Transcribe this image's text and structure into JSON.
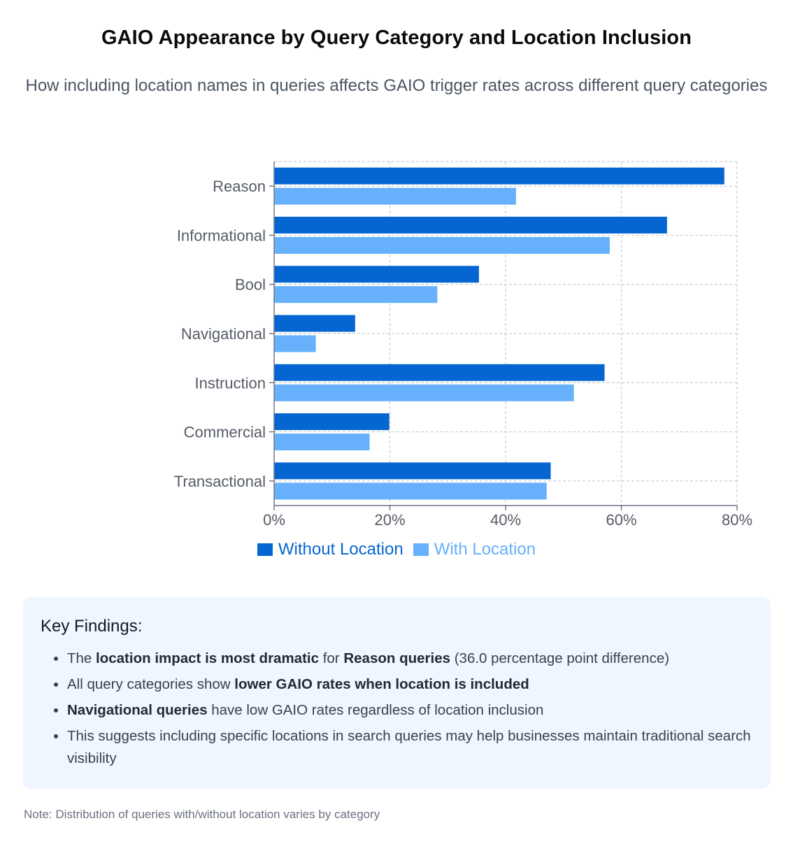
{
  "header": {
    "title": "GAIO Appearance by Query Category and Location Inclusion",
    "subtitle": "How including location names in queries affects GAIO trigger rates across different query categories"
  },
  "chart_data": {
    "type": "bar",
    "orientation": "horizontal",
    "categories": [
      "Reason",
      "Informational",
      "Bool",
      "Navigational",
      "Instruction",
      "Commercial",
      "Transactional"
    ],
    "series": [
      {
        "name": "Without Location",
        "color": "#0566d2",
        "values": [
          77.8,
          67.9,
          35.4,
          14.0,
          57.1,
          19.9,
          47.8
        ]
      },
      {
        "name": "With Location",
        "color": "#66b0fc",
        "values": [
          41.8,
          58.0,
          28.2,
          7.2,
          51.8,
          16.5,
          47.1
        ]
      }
    ],
    "xlim": [
      0,
      80
    ],
    "xticks": [
      "0%",
      "20%",
      "40%",
      "60%",
      "80%"
    ],
    "xlabel": "",
    "ylabel": "",
    "grid": true,
    "legend": "bottom-center"
  },
  "legend": {
    "items": [
      {
        "label": "Without Location",
        "color": "#0566d2"
      },
      {
        "label": "With Location",
        "color": "#66b0fc"
      }
    ]
  },
  "findings": {
    "heading": "Key Findings:",
    "items": [
      {
        "parts": [
          {
            "t": "The "
          },
          {
            "t": "location impact is most dramatic",
            "b": true
          },
          {
            "t": " for "
          },
          {
            "t": "Reason queries",
            "b": true
          },
          {
            "t": " (36.0 percentage point difference)"
          }
        ]
      },
      {
        "parts": [
          {
            "t": "All query categories show "
          },
          {
            "t": "lower GAIO rates when location is included",
            "b": true
          }
        ]
      },
      {
        "parts": [
          {
            "t": "Navigational queries",
            "b": true
          },
          {
            "t": " have low GAIO rates regardless of location inclusion"
          }
        ]
      },
      {
        "parts": [
          {
            "t": "This suggests including specific locations in search queries may help businesses maintain traditional search visibility"
          }
        ]
      }
    ]
  },
  "footer": {
    "note": "Note: Distribution of queries with/without location varies by category"
  }
}
